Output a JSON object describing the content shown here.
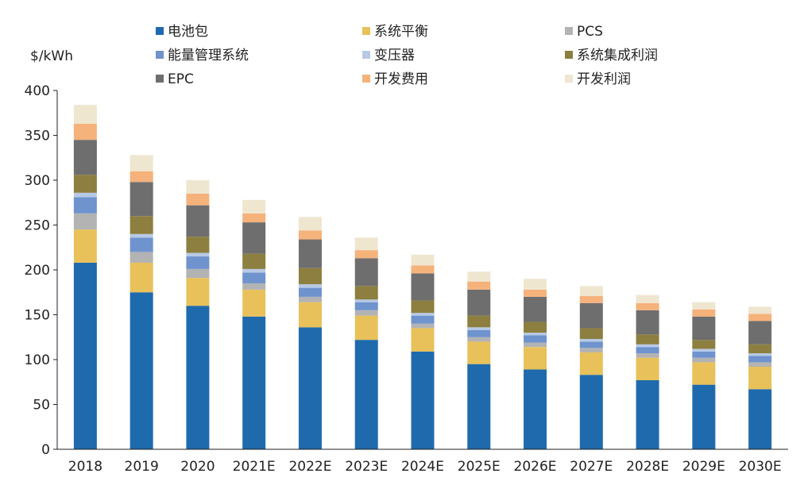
{
  "chart_data": {
    "type": "bar",
    "stacked": true,
    "title": "",
    "unit_label": "$/kWh",
    "xlabel": "",
    "ylabel": "$/kWh",
    "ylim": [
      0,
      400
    ],
    "yticks": [
      0,
      50,
      100,
      150,
      200,
      250,
      300,
      350,
      400
    ],
    "grid": false,
    "legend_position": "top",
    "categories": [
      "2018",
      "2019",
      "2020",
      "2021E",
      "2022E",
      "2023E",
      "2024E",
      "2025E",
      "2026E",
      "2027E",
      "2028E",
      "2029E",
      "2030E"
    ],
    "series": [
      {
        "name": "电池包",
        "color": "#1f6aad",
        "values": [
          208,
          175,
          160,
          148,
          136,
          122,
          109,
          95,
          89,
          83,
          77,
          72,
          67
        ]
      },
      {
        "name": "系统平衡",
        "color": "#e8c15a",
        "values": [
          37,
          33,
          31,
          30,
          28,
          27,
          26,
          25,
          25,
          25,
          25,
          25,
          25
        ]
      },
      {
        "name": "PCS",
        "color": "#b3b3b3",
        "values": [
          18,
          12,
          10,
          7,
          6,
          6,
          5,
          5,
          5,
          5,
          5,
          5,
          5
        ]
      },
      {
        "name": "能量管理系统",
        "color": "#6f93cc",
        "values": [
          18,
          16,
          14,
          12,
          10,
          9,
          9,
          8,
          8,
          7,
          7,
          7,
          7
        ]
      },
      {
        "name": "变压器",
        "color": "#b7c9e6",
        "values": [
          5,
          4,
          4,
          4,
          4,
          3,
          3,
          3,
          3,
          3,
          3,
          3,
          3
        ]
      },
      {
        "name": "系统集成利润",
        "color": "#8c7f3f",
        "values": [
          20,
          20,
          18,
          17,
          18,
          15,
          14,
          13,
          12,
          12,
          11,
          10,
          10
        ]
      },
      {
        "name": "EPC",
        "color": "#6e6e6e",
        "values": [
          39,
          38,
          35,
          35,
          32,
          31,
          30,
          29,
          28,
          28,
          27,
          26,
          26
        ]
      },
      {
        "name": "开发费用",
        "color": "#f5b27b",
        "values": [
          18,
          12,
          13,
          10,
          10,
          9,
          9,
          9,
          8,
          8,
          8,
          8,
          8
        ]
      },
      {
        "name": "开发利润",
        "color": "#efe6d0",
        "values": [
          21,
          18,
          15,
          15,
          15,
          14,
          12,
          11,
          12,
          11,
          9,
          8,
          8
        ]
      }
    ]
  }
}
